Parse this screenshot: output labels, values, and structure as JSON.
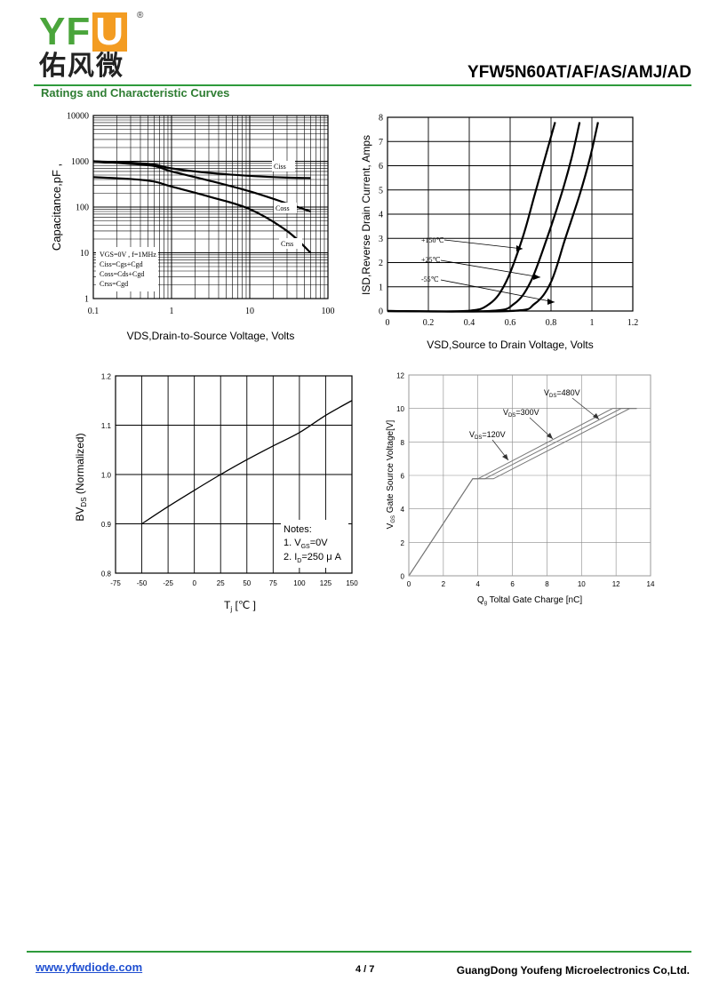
{
  "header": {
    "logo_letters": "YF",
    "logo_letter_u": "U",
    "logo_reg": "®",
    "logo_cn": "佑风微",
    "part_number": "YFW5N60AT/AF/AS/AMJ/AD",
    "section_title": "Ratings and Characteristic Curves"
  },
  "footer": {
    "website": "www.yfwdiode.com",
    "page": "4 / 7",
    "company": "GuangDong Youfeng Microelectronics Co,Ltd."
  },
  "colors": {
    "green": "#2e9b3c",
    "orange": "#f39c22",
    "link": "#1f4fd1"
  },
  "chart_data": [
    {
      "id": "capacitance",
      "type": "line",
      "ylabel": "Capacitance,pF ,",
      "xlabel": "VDS,Drain-to-Source Voltage, Volts",
      "x_scale": "log",
      "y_scale": "log",
      "xlim": [
        0.1,
        100
      ],
      "ylim": [
        1,
        10000
      ],
      "x_ticks": [
        "0.1",
        "1",
        "10",
        "100"
      ],
      "y_ticks": [
        "1",
        "10",
        "100",
        "1000",
        "10000"
      ],
      "legend": [
        "VGS=0V , f=1MHz",
        "Ciss=Cgs+Cgd",
        "Coss=Cds+Cgd",
        "Crss=Cgd"
      ],
      "series": [
        {
          "name": "Ciss",
          "x": [
            0.1,
            0.3,
            0.6,
            1,
            3,
            10,
            30,
            60
          ],
          "y": [
            1000,
            930,
            850,
            700,
            560,
            480,
            440,
            430
          ]
        },
        {
          "name": "Coss",
          "x": [
            0.1,
            0.3,
            0.6,
            1,
            3,
            10,
            30,
            60
          ],
          "y": [
            1000,
            880,
            790,
            600,
            380,
            220,
            120,
            80
          ]
        },
        {
          "name": "Crss",
          "x": [
            0.1,
            0.3,
            0.6,
            1,
            3,
            10,
            30,
            60
          ],
          "y": [
            450,
            410,
            360,
            280,
            170,
            90,
            30,
            10
          ]
        }
      ]
    },
    {
      "id": "reverse-diode",
      "type": "line",
      "ylabel": "ISD,Reverse Drain Current, Amps",
      "xlabel": "VSD,Source to Drain Voltage, Volts",
      "xlim": [
        0,
        1.2
      ],
      "ylim": [
        0,
        8
      ],
      "x_ticks": [
        "0",
        "0.2",
        "0.4",
        "0.6",
        "0.8",
        "1",
        "1.2"
      ],
      "y_ticks": [
        "0",
        "1",
        "2",
        "3",
        "4",
        "5",
        "6",
        "7",
        "8"
      ],
      "series": [
        {
          "name": "+150℃",
          "x": [
            0,
            0.38,
            0.5,
            0.58,
            0.66,
            0.72,
            0.77,
            0.82
          ],
          "y": [
            0,
            0,
            0.3,
            1.2,
            3,
            4.8,
            6.3,
            7.8
          ]
        },
        {
          "name": "+25℃",
          "x": [
            0,
            0.5,
            0.62,
            0.7,
            0.78,
            0.85,
            0.9,
            0.94
          ],
          "y": [
            0,
            0,
            0.3,
            1.2,
            3,
            4.8,
            6.3,
            7.8
          ]
        },
        {
          "name": "-55℃",
          "x": [
            0,
            0.6,
            0.72,
            0.8,
            0.87,
            0.94,
            0.99,
            1.03
          ],
          "y": [
            0,
            0,
            0.3,
            1.2,
            3,
            4.8,
            6.3,
            7.8
          ]
        }
      ]
    },
    {
      "id": "bvdss",
      "type": "line",
      "ylabel_main": "BV",
      "ylabel_sub": "DS",
      "ylabel_rest": " (Normalized)",
      "xlabel_main": "T",
      "xlabel_sub": "j",
      "xlabel_rest": " [℃ ]",
      "xlim": [
        -75,
        150
      ],
      "ylim": [
        0.8,
        1.2
      ],
      "x_ticks": [
        "-75",
        "-50",
        "-25",
        "0",
        "25",
        "50",
        "75",
        "100",
        "125",
        "150"
      ],
      "y_ticks": [
        "0.8",
        "0.9",
        "1.0",
        "1.1",
        "1.2"
      ],
      "notes": {
        "title": "Notes:",
        "n1_main": "1. V",
        "n1_sub": "GS",
        "n1_rest": "=0V",
        "n2_main": "2. I",
        "n2_sub": "D",
        "n2_rest": "=250 μ A"
      },
      "series": [
        {
          "x": [
            -50,
            -25,
            0,
            25,
            50,
            75,
            100,
            125,
            150
          ],
          "y": [
            0.9,
            0.935,
            0.968,
            1.0,
            1.03,
            1.058,
            1.085,
            1.12,
            1.15
          ]
        }
      ]
    },
    {
      "id": "gate-charge",
      "type": "line",
      "ylabel_main": "V",
      "ylabel_sub": "GS",
      "ylabel_rest": " Gate Source Voltage[V]",
      "xlabel_main": "Q",
      "xlabel_sub": "g",
      "xlabel_rest": " Toltal Gate Charge [nC]",
      "xlim": [
        0,
        14
      ],
      "ylim": [
        0,
        12
      ],
      "x_ticks": [
        "0",
        "2",
        "4",
        "6",
        "8",
        "10",
        "12",
        "14"
      ],
      "y_ticks": [
        "0",
        "2",
        "4",
        "6",
        "8",
        "10",
        "12"
      ],
      "labels": [
        {
          "main": "V",
          "sub": "DS",
          "rest": "=480V"
        },
        {
          "main": "V",
          "sub": "DS",
          "rest": "=300V"
        },
        {
          "main": "V",
          "sub": "DS",
          "rest": "=120V"
        }
      ],
      "series": [
        {
          "name": "VDS=120V",
          "x": [
            0,
            3.7,
            4.0,
            11.8,
            13.2
          ],
          "y": [
            0,
            5.8,
            5.8,
            10,
            10
          ]
        },
        {
          "name": "VDS=300V",
          "x": [
            0,
            3.7,
            4.4,
            12.3,
            13.2
          ],
          "y": [
            0,
            5.8,
            5.8,
            10,
            10
          ]
        },
        {
          "name": "VDS=480V",
          "x": [
            0,
            3.7,
            4.9,
            12.8,
            13.2
          ],
          "y": [
            0,
            5.8,
            5.8,
            10,
            10
          ]
        }
      ]
    }
  ]
}
